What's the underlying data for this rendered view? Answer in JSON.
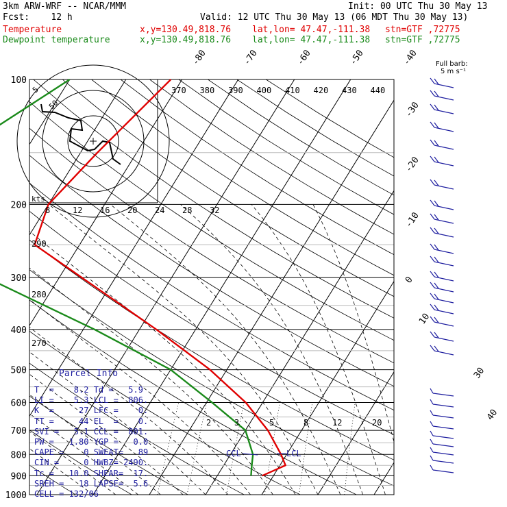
{
  "header": {
    "model": "3km ARW-WRF -- NCAR/MMM",
    "init": "Init: 00 UTC Thu 30 May 13",
    "fcst": "Fcst:    12 h",
    "valid": "Valid: 12 UTC Thu 30 May 13 (06 MDT Thu 30 May 13)"
  },
  "legend": [
    {
      "name": "Temperature",
      "coords": "x,y=130.49,818.76",
      "latlon": "lat,lon= 47.47,-111.38",
      "stn": "stn=GTF ,72775",
      "color": "#e00000"
    },
    {
      "name": "Dewpoint temperature",
      "coords": "x,y=130.49,818.76",
      "latlon": "lat,lon= 47.47,-111.38",
      "stn": "stn=GTF ,72775",
      "color": "#1a8a1a"
    }
  ],
  "colors": {
    "temperature": "#e00000",
    "dewpoint": "#1a8a1a",
    "parcel_text": "#1b1b9e",
    "barbs": "#1b1b9e",
    "grid": "#000000"
  },
  "chart_data": {
    "type": "line",
    "title": "",
    "yaxis_pressure_labels": [
      "100",
      "200",
      "300",
      "400",
      "500",
      "600",
      "700",
      "800",
      "900",
      "1000"
    ],
    "isotherm_labels": [
      "-80",
      "-70",
      "-60",
      "-50",
      "-40",
      "-30",
      "-20",
      "-10",
      "0",
      "10",
      "30",
      "40"
    ],
    "theta_labels": [
      "370",
      "380",
      "390",
      "400",
      "410",
      "420",
      "430",
      "440"
    ],
    "theta_side_labels": [
      "290",
      "280",
      "270"
    ],
    "mixing_ratio_labels": [
      "2",
      "3",
      "5",
      "8",
      "12",
      "20"
    ],
    "hodograph": {
      "speed_rings": [
        "5",
        "50"
      ],
      "axis_title": "kts",
      "axis_labels": [
        "8",
        "12",
        "16",
        "20",
        "24",
        "28",
        "32"
      ]
    },
    "temperature": {
      "name": "Temperature",
      "pressure": [
        100,
        150,
        200,
        250,
        300,
        400,
        500,
        600,
        700,
        800,
        850,
        900
      ],
      "values": [
        -52,
        -57,
        -60,
        -58,
        -46,
        -27,
        -13,
        -3,
        4,
        9,
        11,
        8
      ]
    },
    "dewpoint": {
      "name": "Dewpoint temperature",
      "pressure": [
        100,
        150,
        200,
        250,
        300,
        400,
        500,
        600,
        700,
        800,
        850,
        900
      ],
      "values": [
        -70,
        -82,
        -82,
        -80,
        -63,
        -38,
        -20,
        -9,
        0,
        4,
        5,
        6
      ]
    },
    "wind_label": "Full barb:\n5 m s⁻¹",
    "lcl_labels": [
      "CCL",
      "LCL"
    ]
  },
  "parcel": {
    "title": "Parcel Info",
    "rows": [
      "T  =    8.2 Td =   5.9",
      "LI =    5.3 LCL =  806.",
      "K  =     27 LFC =    0.",
      "TT =     44 EL  =    0.",
      "SVI =   5.1 CCL =  801.",
      "PW =   1.80 YGP =   0.0",
      "CAPE =    0 SWEAT=   89",
      "CIN =     0 HWBZ= 2490.",
      "Tc =   10.0 SHEAR=  17.",
      "SREH =   18 LAPSE=  5.6",
      "CELL = 132/06"
    ]
  }
}
